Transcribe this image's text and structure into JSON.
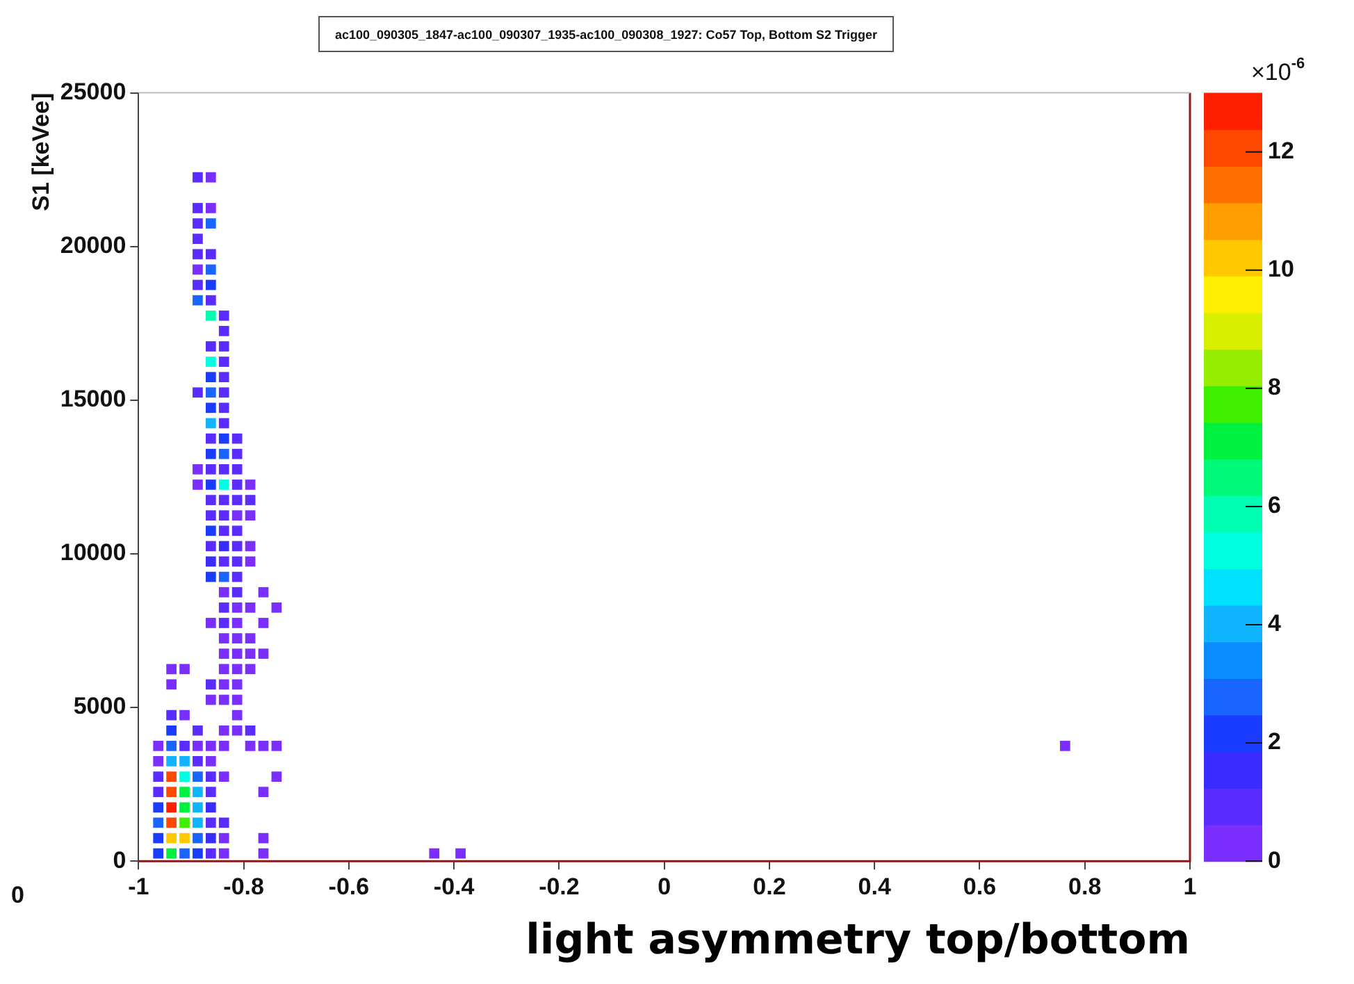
{
  "chart_data": {
    "type": "scatter",
    "title": "ac100_090305_1847-ac100_090307_1935-ac100_090308_1927: Co57 Top, Bottom S2 Trigger",
    "xlabel": "light asymmetry top/bottom",
    "ylabel": "S1 [keVee]",
    "clabel": "×10$^{-6}$",
    "annotations": [
      "0"
    ],
    "xlim": [
      -1,
      1
    ],
    "xticks": [
      -1,
      -0.8,
      -0.6,
      -0.4,
      -0.2,
      0,
      0.2,
      0.4,
      0.6,
      0.8,
      1
    ],
    "ylim": [
      0,
      25000
    ],
    "yticks": [
      0,
      5000,
      10000,
      15000,
      20000,
      25000
    ],
    "clim": [
      0,
      13
    ],
    "cticks": [
      0,
      2,
      4,
      6,
      8,
      10,
      12
    ],
    "grid": false,
    "legend": false,
    "marker": "square",
    "series": [
      {
        "x": [
          -0.9625,
          -0.9375,
          -0.9125,
          -0.8875,
          -0.8625,
          -0.8375,
          -0.7625,
          -0.4375,
          -0.3875,
          -0.9625,
          -0.9375,
          -0.9125,
          -0.8875,
          -0.8625,
          -0.8375,
          -0.7625,
          -0.9625,
          -0.9375,
          -0.9125,
          -0.8875,
          -0.8625,
          -0.8375,
          -0.9625,
          -0.9375,
          -0.9125,
          -0.8875,
          -0.8625,
          -0.9625,
          -0.9375,
          -0.9125,
          -0.8875,
          -0.8625,
          -0.7625,
          -0.9625,
          -0.9375,
          -0.9125,
          -0.8875,
          -0.8625,
          -0.8375,
          -0.7375,
          -0.9625,
          -0.9375,
          -0.9125,
          -0.8875,
          -0.8625,
          -0.9625,
          -0.9375,
          -0.9125,
          -0.8875,
          -0.8625,
          -0.8375,
          -0.7875,
          -0.7625,
          -0.7375,
          0.7625,
          -0.9375,
          -0.8875,
          -0.8375,
          -0.8125,
          -0.7875,
          -0.9375,
          -0.9125,
          -0.8125,
          -0.8625,
          -0.8375,
          -0.8125,
          -0.9375,
          -0.8625,
          -0.8375,
          -0.8125,
          -0.9375,
          -0.9125,
          -0.8375,
          -0.8125,
          -0.7875,
          -0.8375,
          -0.8125,
          -0.7875,
          -0.7625,
          -0.8375,
          -0.8125,
          -0.7875,
          -0.8625,
          -0.8375,
          -0.8125,
          -0.7625,
          -0.8375,
          -0.8125,
          -0.7875,
          -0.7375,
          -0.8375,
          -0.8125,
          -0.7625,
          -0.8625,
          -0.8375,
          -0.8125,
          -0.8625,
          -0.8375,
          -0.8125,
          -0.7875,
          -0.8625,
          -0.8375,
          -0.8125,
          -0.7875,
          -0.8625,
          -0.8375,
          -0.8125,
          -0.8625,
          -0.8375,
          -0.8125,
          -0.7875,
          -0.8625,
          -0.8375,
          -0.8125,
          -0.7875,
          -0.8875,
          -0.8625,
          -0.8375,
          -0.8125,
          -0.7875,
          -0.8875,
          -0.8625,
          -0.8375,
          -0.8125,
          -0.8625,
          -0.8375,
          -0.8125,
          -0.8625,
          -0.8375,
          -0.8125,
          -0.8625,
          -0.8375,
          -0.8625,
          -0.8375,
          -0.8875,
          -0.8625,
          -0.8375,
          -0.8625,
          -0.8375,
          -0.8625,
          -0.8375,
          -0.8625,
          -0.8375,
          -0.8375,
          -0.8625,
          -0.8375,
          -0.8875,
          -0.8625,
          -0.8875,
          -0.8625,
          -0.8875,
          -0.8625,
          -0.8875,
          -0.8625,
          -0.8875,
          -0.8875,
          -0.8625,
          -0.8875,
          -0.8625,
          -0.8875,
          -0.8625
        ],
        "values": [
          250,
          250,
          250,
          250,
          250,
          250,
          250,
          250,
          250,
          750,
          750,
          750,
          750,
          750,
          750,
          750,
          1250,
          1250,
          1250,
          1250,
          1250,
          1250,
          1750,
          1750,
          1750,
          1750,
          1750,
          2250,
          2250,
          2250,
          2250,
          2250,
          2250,
          2750,
          2750,
          2750,
          2750,
          2750,
          2750,
          2750,
          3250,
          3250,
          3250,
          3250,
          3250,
          3750,
          3750,
          3750,
          3750,
          3750,
          3750,
          3750,
          3750,
          3750,
          3750,
          4250,
          4250,
          4250,
          4250,
          4250,
          4750,
          4750,
          4750,
          5250,
          5250,
          5250,
          5750,
          5750,
          5750,
          5750,
          6250,
          6250,
          6250,
          6250,
          6250,
          6750,
          6750,
          6750,
          6750,
          7250,
          7250,
          7250,
          7750,
          7750,
          7750,
          7750,
          8250,
          8250,
          8250,
          8250,
          8750,
          8750,
          8750,
          9250,
          9250,
          9250,
          9750,
          9750,
          9750,
          9750,
          10250,
          10250,
          10250,
          10250,
          10750,
          10750,
          10750,
          11250,
          11250,
          11250,
          11250,
          11750,
          11750,
          11750,
          11750,
          12250,
          12250,
          12250,
          12250,
          12250,
          12750,
          12750,
          12750,
          12750,
          13250,
          13250,
          13250,
          13750,
          13750,
          13750,
          14250,
          14250,
          14750,
          14750,
          15250,
          15250,
          15250,
          15750,
          15750,
          16250,
          16250,
          16750,
          16750,
          17250,
          17750,
          17750,
          18250,
          18250,
          18750,
          18750,
          19250,
          19250,
          19750,
          19750,
          20250,
          20750,
          20750,
          21250,
          21250,
          22250,
          22250
        ],
        "cvalues": [
          2,
          7,
          3,
          2,
          1,
          0.5,
          0.5,
          0.5,
          0.5,
          2,
          10,
          10,
          3,
          1.5,
          0.5,
          0.5,
          3,
          12,
          8,
          4,
          1,
          1,
          2,
          13,
          7,
          4,
          1.5,
          1,
          12,
          7,
          4,
          1,
          0.5,
          1,
          12,
          5,
          3,
          1,
          0.5,
          0.5,
          0.5,
          4,
          4,
          1,
          0.5,
          0.5,
          3,
          1,
          0.5,
          0.5,
          0.5,
          0.5,
          0.5,
          0.5,
          0.5,
          2,
          1,
          0.5,
          0.5,
          1,
          1,
          0.5,
          0.5,
          0.5,
          0.5,
          0.5,
          0.5,
          1,
          0.5,
          0.5,
          0.5,
          0.5,
          0.5,
          0.5,
          0.5,
          0.5,
          0.5,
          0.5,
          0.5,
          0.5,
          0.5,
          0.5,
          0.5,
          1,
          0.5,
          0.5,
          1,
          0.5,
          0.5,
          0.5,
          0.5,
          1,
          0.5,
          2,
          3,
          1,
          1.5,
          1,
          1,
          0.5,
          1,
          1.5,
          1,
          0.5,
          2,
          1,
          1,
          1,
          1,
          0.5,
          0.5,
          1,
          1,
          1,
          1,
          0.5,
          2,
          5,
          1,
          0.5,
          0.5,
          1,
          1,
          1,
          2,
          3,
          1,
          1,
          2,
          1,
          4,
          1,
          2,
          1,
          1,
          3,
          1,
          2,
          1,
          5,
          1,
          1,
          1,
          1,
          6,
          1,
          3,
          1,
          1,
          2,
          0.5,
          3,
          1,
          1,
          1,
          1,
          3,
          1,
          0.5,
          1,
          0.5
        ]
      }
    ]
  }
}
